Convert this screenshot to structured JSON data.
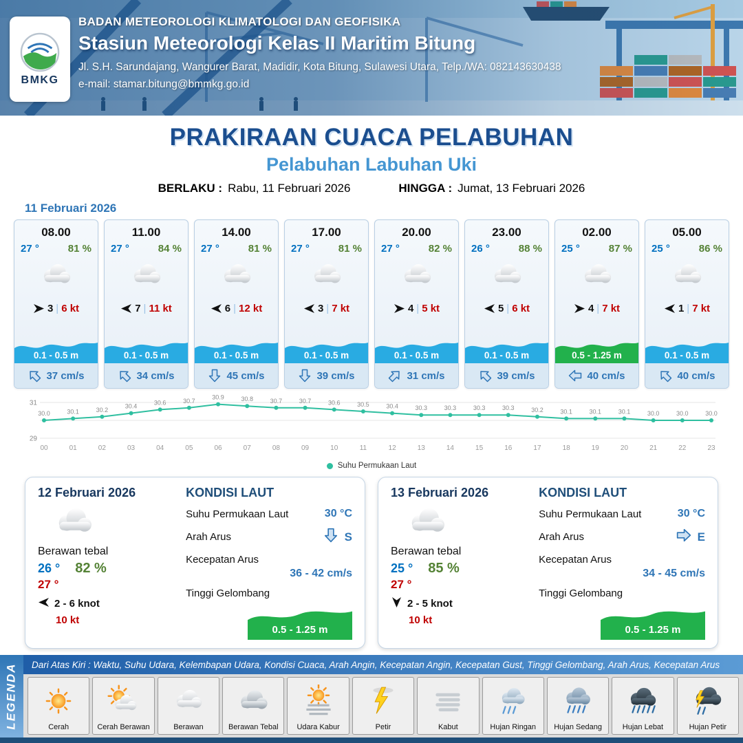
{
  "header": {
    "agency": "BADAN METEOROLOGI KLIMATOLOGI DAN GEOFISIKA",
    "station": "Stasiun Meteorologi Kelas II Maritim Bitung",
    "address": "Jl. S.H. Sarundajang, Wangurer Barat, Madidir, Kota Bitung, Sulawesi Utara, Telp./WA: 082143630438",
    "email": "e-mail: stamar.bitung@bmmkg.go.id",
    "logo_text": "BMKG"
  },
  "title": {
    "main": "PRAKIRAAN CUACA PELABUHAN",
    "subtitle": "Pelabuhan Labuhan Uki",
    "berlaku_label": "BERLAKU :",
    "berlaku_value": "Rabu, 11 Februari 2026",
    "hingga_label": "HINGGA :",
    "hingga_value": "Jumat, 13 Februari 2026"
  },
  "forecast_date": "11 Februari 2026",
  "forecast_cards": [
    {
      "time": "08.00",
      "temp": "27 °",
      "humidity": "81 %",
      "wind_speed": "3",
      "wind_deg": 0,
      "gust": "6 kt",
      "wave": "0.1 - 0.5 m",
      "wave_color": "#29abe2",
      "current": "37 cm/s",
      "current_deg": -45
    },
    {
      "time": "11.00",
      "temp": "27 °",
      "humidity": "84 %",
      "wind_speed": "7",
      "wind_deg": 180,
      "gust": "11 kt",
      "wave": "0.1 - 0.5 m",
      "wave_color": "#29abe2",
      "current": "34 cm/s",
      "current_deg": -45
    },
    {
      "time": "14.00",
      "temp": "27 °",
      "humidity": "81 %",
      "wind_speed": "6",
      "wind_deg": 180,
      "gust": "12 kt",
      "wave": "0.1 - 0.5 m",
      "wave_color": "#29abe2",
      "current": "45 cm/s",
      "current_deg": 180
    },
    {
      "time": "17.00",
      "temp": "27 °",
      "humidity": "81 %",
      "wind_speed": "3",
      "wind_deg": 180,
      "gust": "7 kt",
      "wave": "0.1 - 0.5 m",
      "wave_color": "#29abe2",
      "current": "39 cm/s",
      "current_deg": 180
    },
    {
      "time": "20.00",
      "temp": "27 °",
      "humidity": "82 %",
      "wind_speed": "4",
      "wind_deg": 0,
      "gust": "5 kt",
      "wave": "0.1 - 0.5 m",
      "wave_color": "#29abe2",
      "current": "31 cm/s",
      "current_deg": 45
    },
    {
      "time": "23.00",
      "temp": "26 °",
      "humidity": "88 %",
      "wind_speed": "5",
      "wind_deg": 180,
      "gust": "6 kt",
      "wave": "0.1 - 0.5 m",
      "wave_color": "#29abe2",
      "current": "39 cm/s",
      "current_deg": -45
    },
    {
      "time": "02.00",
      "temp": "25 °",
      "humidity": "87 %",
      "wind_speed": "4",
      "wind_deg": 0,
      "gust": "7 kt",
      "wave": "0.5 - 1.25 m",
      "wave_color": "#22b14c",
      "current": "40 cm/s",
      "current_deg": -90
    },
    {
      "time": "05.00",
      "temp": "25 °",
      "humidity": "86 %",
      "wind_speed": "1",
      "wind_deg": 180,
      "gust": "7 kt",
      "wave": "0.1 - 0.5 m",
      "wave_color": "#29abe2",
      "current": "40 cm/s",
      "current_deg": -45
    }
  ],
  "chart_data": {
    "type": "line",
    "title": "Suhu Permukaan Laut",
    "series_name": "Suhu Permukaan Laut",
    "x": [
      "00",
      "01",
      "02",
      "03",
      "04",
      "05",
      "06",
      "07",
      "08",
      "09",
      "10",
      "11",
      "12",
      "13",
      "14",
      "15",
      "16",
      "17",
      "18",
      "19",
      "20",
      "21",
      "22",
      "23"
    ],
    "values": [
      30.0,
      30.1,
      30.2,
      30.4,
      30.6,
      30.7,
      30.9,
      30.8,
      30.7,
      30.7,
      30.6,
      30.5,
      30.4,
      30.3,
      30.3,
      30.3,
      30.3,
      30.2,
      30.1,
      30.1,
      30.1,
      30.0,
      30.0,
      30.0
    ],
    "ylim": [
      29,
      31
    ],
    "yticks": [
      31,
      29
    ],
    "line_color": "#2fbfa0",
    "legend_position": "bottom-center",
    "grid": true
  },
  "daily_cards": [
    {
      "date": "12 Februari 2026",
      "condition": "Berawan tebal",
      "temp": "26 °",
      "humidity": "82 %",
      "temp2": "27 °",
      "wind": "2  - 6 knot",
      "wind_deg": 180,
      "gust": "10 kt",
      "sea_title": "KONDISI LAUT",
      "sst_label": "Suhu Permukaan Laut",
      "sst": "30 °C",
      "current_dir_label": "Arah Arus",
      "current_dir": "S",
      "current_deg": 180,
      "current_speed_label": "Kecepatan Arus",
      "current_speed": "36 - 42 cm/s",
      "wave_label": "Tinggi Gelombang",
      "wave": "0.5 - 1.25 m",
      "wave_color": "#22b14c"
    },
    {
      "date": "13 Februari 2026",
      "condition": "Berawan tebal",
      "temp": "25 °",
      "humidity": "85 %",
      "temp2": "27 °",
      "wind": "2  - 5 knot",
      "wind_deg": 90,
      "gust": "10 kt",
      "sea_title": "KONDISI LAUT",
      "sst_label": "Suhu Permukaan Laut",
      "sst": "30 °C",
      "current_dir_label": "Arah Arus",
      "current_dir": "E",
      "current_deg": 90,
      "current_speed_label": "Kecepatan Arus",
      "current_speed": "34 - 45 cm/s",
      "wave_label": "Tinggi Gelombang",
      "wave": "0.5 - 1.25 m",
      "wave_color": "#22b14c"
    }
  ],
  "legend": {
    "side_label": "LEGENDA",
    "note": "Dari Atas Kiri : Waktu, Suhu Udara, Kelembapan Udara, Kondisi Cuaca, Arah Angin, Kecepatan Angin, Kecepatan Gust, Tinggi Gelombang, Arah Arus, Kecepatan Arus",
    "items": [
      {
        "label": "Cerah",
        "icon": "sun"
      },
      {
        "label": "Cerah Berawan",
        "icon": "sun-cloud"
      },
      {
        "label": "Berawan",
        "icon": "cloud"
      },
      {
        "label": "Berawan Tebal",
        "icon": "cloud-thick"
      },
      {
        "label": "Udara Kabur",
        "icon": "haze"
      },
      {
        "label": "Petir",
        "icon": "lightning"
      },
      {
        "label": "Kabut",
        "icon": "fog"
      },
      {
        "label": "Hujan Ringan",
        "icon": "rain-light"
      },
      {
        "label": "Hujan Sedang",
        "icon": "rain-moderate"
      },
      {
        "label": "Hujan Lebat",
        "icon": "rain-heavy"
      },
      {
        "label": "Hujan Petir",
        "icon": "thunderstorm"
      }
    ]
  }
}
